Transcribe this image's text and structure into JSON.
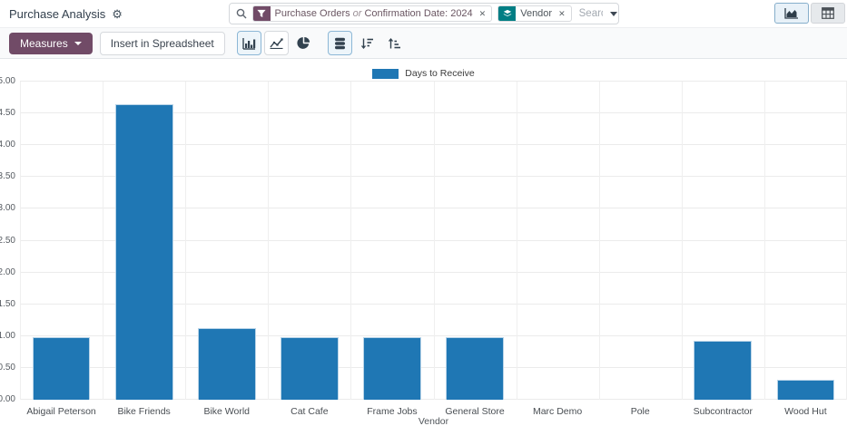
{
  "colors": {
    "primary": "#714B67",
    "groupby_accent": "#017E84",
    "bar": "#1f77b4",
    "selected_view_accent": "#8cb7d6"
  },
  "header": {
    "title": "Purchase Analysis",
    "search": {
      "placeholder": "Search...",
      "filter_facet": {
        "part1": "Purchase Orders",
        "separator": "or",
        "part2": "Confirmation Date: 2024",
        "remove_glyph": "✕"
      },
      "groupby_facet": {
        "label": "Vendor",
        "remove_glyph": "✕"
      }
    }
  },
  "toolbar": {
    "measures_label": "Measures",
    "insert_spreadsheet_label": "Insert in Spreadsheet"
  },
  "chart_data": {
    "type": "bar",
    "categories": [
      "Abigail Peterson",
      "Bike Friends",
      "Bike World",
      "Cat Cafe",
      "Frame Jobs",
      "General Store",
      "Marc Demo",
      "Pole",
      "Subcontractor",
      "Wood Hut"
    ],
    "series": [
      {
        "name": "Days to Receive",
        "values": [
          0.98,
          4.65,
          1.12,
          0.98,
          0.98,
          0.98,
          0,
          0,
          0.92,
          0.31
        ]
      }
    ],
    "title": "",
    "xlabel": "Vendor",
    "ylabel": "",
    "ylim": [
      0,
      5
    ],
    "ytick_step": 0.5,
    "legend_position": "top",
    "grid": true
  }
}
